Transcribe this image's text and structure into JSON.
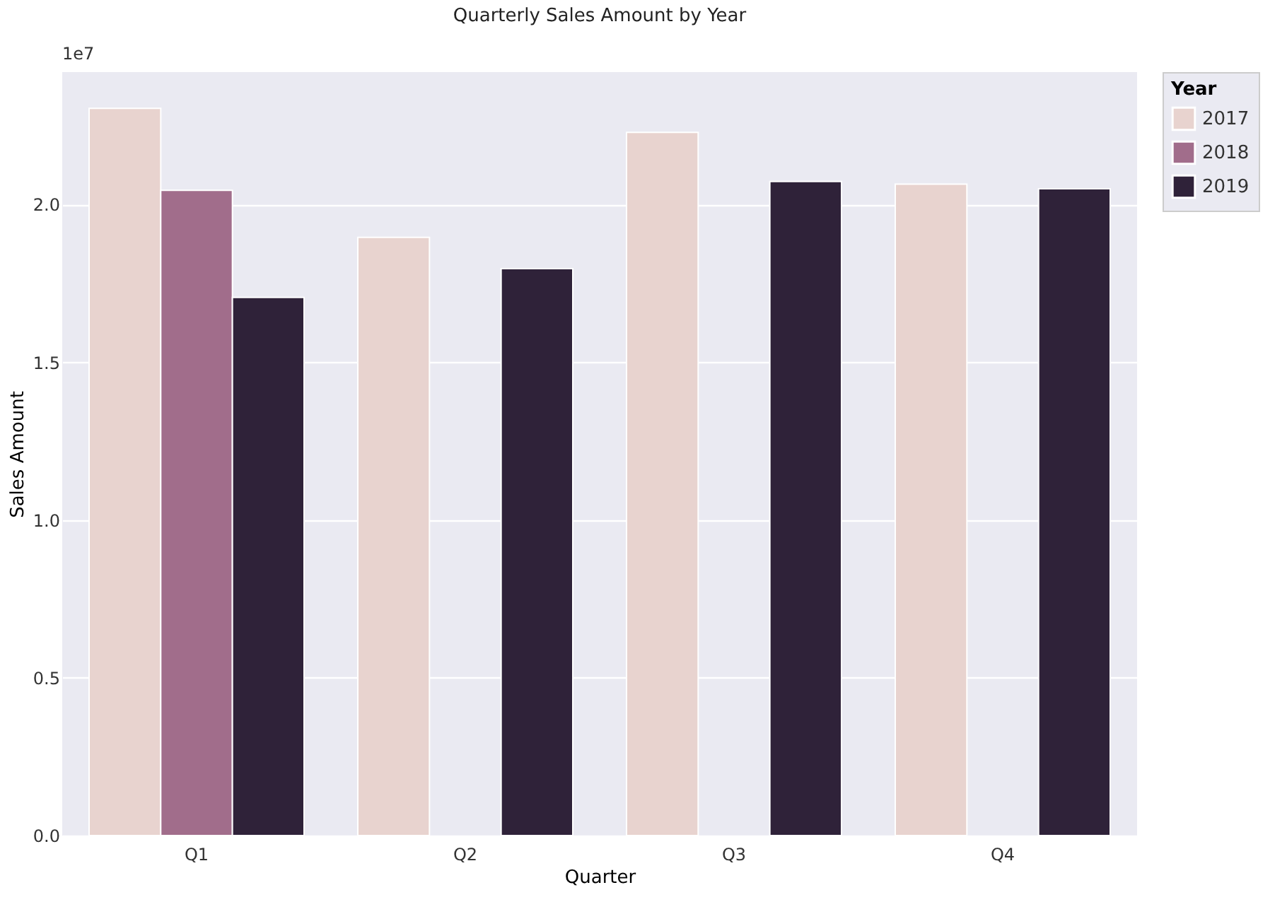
{
  "chart_data": {
    "type": "bar",
    "title": "Quarterly Sales Amount by Year",
    "xlabel": "Quarter",
    "ylabel": "Sales Amount",
    "legend_title": "Year",
    "categories": [
      "Q1",
      "Q2",
      "Q3",
      "Q4"
    ],
    "series": [
      {
        "name": "2017",
        "color": "#e8d3cf",
        "values": [
          2.305,
          1.896,
          2.229,
          2.065
        ]
      },
      {
        "name": "2018",
        "color": "#a16d8b",
        "values": [
          2.045,
          null,
          null,
          null
        ]
      },
      {
        "name": "2019",
        "color": "#2f2239",
        "values": [
          1.706,
          1.797,
          2.073,
          2.05
        ]
      }
    ],
    "ylim": [
      0,
      2.42
    ],
    "yticks": [
      {
        "value": 0,
        "label": "0.0"
      },
      {
        "value": 0.5,
        "label": "0.5"
      },
      {
        "value": 1,
        "label": "1.0"
      },
      {
        "value": 1.5,
        "label": "1.5"
      },
      {
        "value": 2,
        "label": "2.0"
      }
    ],
    "annotations": [
      "1e7"
    ],
    "grid": "y",
    "legend": "right"
  }
}
